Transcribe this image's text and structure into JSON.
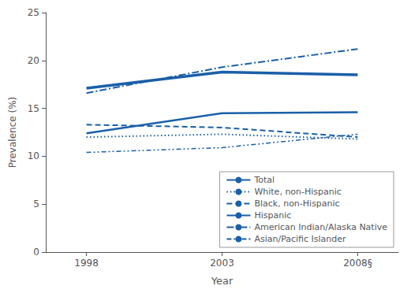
{
  "chart_data": {
    "type": "line",
    "x": [
      1998,
      2003,
      2008
    ],
    "series": [
      {
        "name": "Total",
        "values": [
          12.4,
          14.5,
          14.6
        ],
        "line_style": "solid"
      },
      {
        "name": "White, non-Hispanic",
        "values": [
          12.0,
          12.3,
          11.8
        ],
        "line_style": "dotted"
      },
      {
        "name": "Black, non-Hispanic",
        "values": [
          13.3,
          13.0,
          12.0
        ],
        "line_style": "dashed"
      },
      {
        "name": "Hispanic",
        "values": [
          17.1,
          18.8,
          18.5
        ],
        "line_style": "solid"
      },
      {
        "name": "American Indian/Alaska Native",
        "values": [
          16.6,
          19.3,
          21.2
        ],
        "line_style": "dashdot"
      },
      {
        "name": "Asian/Pacific Islander",
        "values": [
          10.4,
          10.9,
          12.3
        ],
        "line_style": "dashdotdot"
      }
    ],
    "color": "#1a5fa8",
    "xlabel": "Year",
    "ylabel": "Prevalence (%)",
    "xlim": [
      1996.5,
      2009.5
    ],
    "xticks": [
      1998,
      2003,
      {
        "value": 2008,
        "label": "2008§"
      }
    ],
    "ylim": [
      0,
      25
    ],
    "yticks": [
      0,
      5,
      10,
      15,
      20,
      25
    ],
    "grid": false,
    "legend": "lower right"
  }
}
